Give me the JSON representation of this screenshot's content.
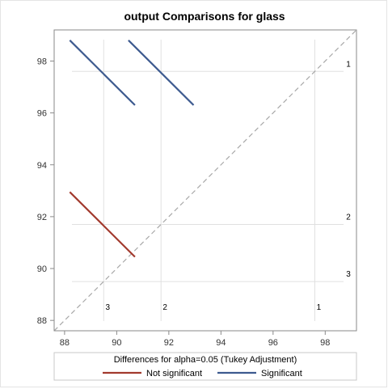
{
  "chart_data": {
    "type": "diffogram",
    "title": "output Comparisons for glass",
    "xlim": [
      87.6,
      99.2
    ],
    "ylim": [
      87.6,
      99.2
    ],
    "x_ticks": [
      88,
      90,
      92,
      94,
      96,
      98
    ],
    "y_ticks": [
      88,
      90,
      92,
      94,
      96,
      98
    ],
    "levels": [
      {
        "label": "1",
        "mean": 97.6
      },
      {
        "label": "2",
        "mean": 91.7
      },
      {
        "label": "3",
        "mean": 89.5
      }
    ],
    "comparisons": [
      {
        "status": "Not significant",
        "x1": 88.2,
        "y1": 92.95,
        "x2": 90.7,
        "y2": 90.45
      },
      {
        "status": "Significant",
        "x1": 88.2,
        "y1": 98.8,
        "x2": 90.7,
        "y2": 96.3
      },
      {
        "status": "Significant",
        "x1": 90.45,
        "y1": 98.8,
        "x2": 92.95,
        "y2": 96.3
      }
    ],
    "legend": {
      "title": "Differences for alpha=0.05 (Tukey Adjustment)",
      "placement": "bottom",
      "entries": [
        {
          "label": "Not significant",
          "color": "#a23a2e"
        },
        {
          "label": "Significant",
          "color": "#3d5a8f"
        }
      ]
    },
    "colors": {
      "reference_line": "#a8a8a8",
      "grid": "#e0e0e0",
      "axis": "#8a8a8a"
    }
  }
}
